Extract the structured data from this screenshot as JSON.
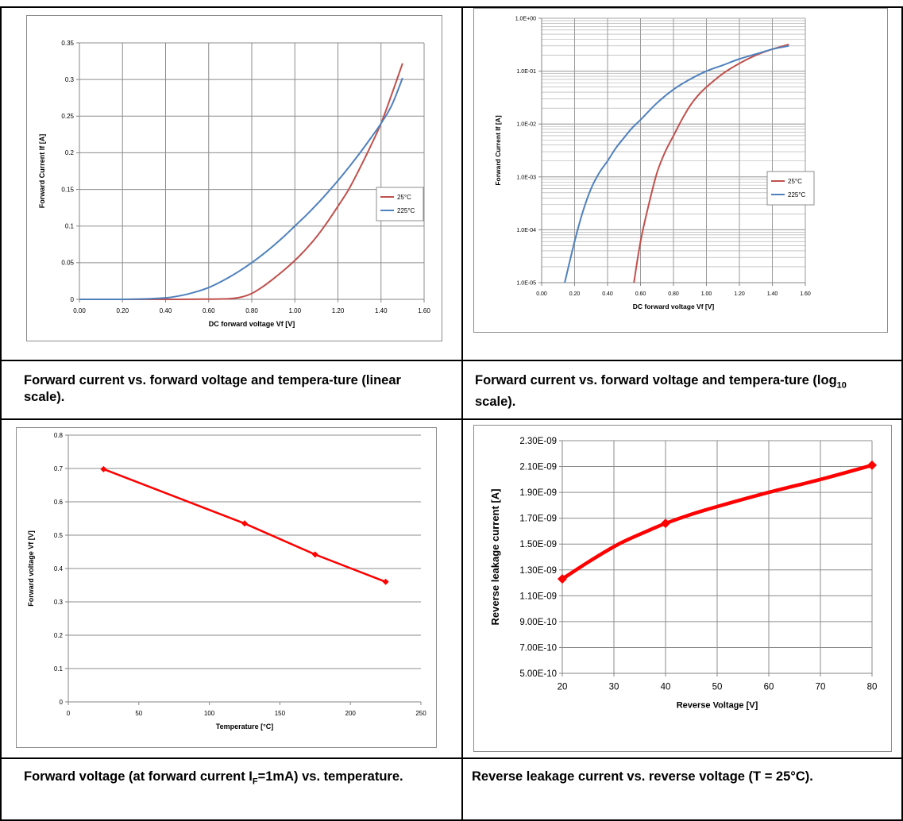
{
  "captions": {
    "c1": "Forward current vs. forward voltage and tempera-ture (linear scale).",
    "c2_a": "Forward current vs. forward voltage and tempera-ture (log",
    "c2_sub": "10",
    "c2_b": " scale).",
    "c3_a": "Forward voltage (at forward current I",
    "c3_sub": "F",
    "c3_b": "=1mA) vs. temperature.",
    "c4": "Reverse leakage current vs. reverse voltage (T = 25°C)."
  },
  "chart_data": [
    {
      "type": "line",
      "title": "",
      "xlabel": "DC forward voltage Vf [V]",
      "ylabel": "Forward Current If [A]",
      "xlim": [
        0,
        1.6
      ],
      "ylim": [
        0,
        0.35
      ],
      "xticks": [
        "0.00",
        "0.20",
        "0.40",
        "0.60",
        "0.80",
        "1.00",
        "1.20",
        "1.40",
        "1.60"
      ],
      "yticks": [
        "0",
        "0.05",
        "0.1",
        "0.15",
        "0.2",
        "0.25",
        "0.3",
        "0.35"
      ],
      "grid": true,
      "legend": "right",
      "series": [
        {
          "name": "25°C",
          "color": "#c0504d",
          "x": [
            0,
            0.2,
            0.4,
            0.6,
            0.7,
            0.75,
            0.8,
            0.85,
            0.9,
            0.95,
            1.0,
            1.05,
            1.1,
            1.15,
            1.2,
            1.25,
            1.3,
            1.35,
            1.4,
            1.45,
            1.5
          ],
          "y": [
            0,
            0,
            0,
            0.0003,
            0.001,
            0.003,
            0.008,
            0.017,
            0.028,
            0.04,
            0.053,
            0.068,
            0.085,
            0.105,
            0.127,
            0.15,
            0.178,
            0.208,
            0.24,
            0.28,
            0.322
          ]
        },
        {
          "name": "225°C",
          "color": "#4f81bd",
          "x": [
            0,
            0.2,
            0.3,
            0.4,
            0.45,
            0.5,
            0.55,
            0.6,
            0.65,
            0.7,
            0.75,
            0.8,
            0.85,
            0.9,
            0.95,
            1.0,
            1.05,
            1.1,
            1.15,
            1.2,
            1.25,
            1.3,
            1.35,
            1.4,
            1.45,
            1.5
          ],
          "y": [
            0,
            0,
            0.0005,
            0.002,
            0.004,
            0.007,
            0.011,
            0.016,
            0.023,
            0.031,
            0.04,
            0.05,
            0.061,
            0.073,
            0.086,
            0.1,
            0.114,
            0.129,
            0.145,
            0.162,
            0.18,
            0.199,
            0.219,
            0.24,
            0.265,
            0.302
          ]
        }
      ]
    },
    {
      "type": "line",
      "title": "",
      "xlabel": "DC forward voltage Vf [V]",
      "ylabel": "Forward Current If [A]",
      "yscale": "log",
      "xlim": [
        0,
        1.6
      ],
      "ylim": [
        1e-05,
        1
      ],
      "xticks": [
        "0.00",
        "0.20",
        "0.40",
        "0.60",
        "0.80",
        "1.00",
        "1.20",
        "1.40",
        "1.60"
      ],
      "yticks": [
        "1.0E-05",
        "1.0E-04",
        "1.0E-03",
        "1.0E-02",
        "1.0E-01",
        "1.0E+00"
      ],
      "grid": true,
      "legend": "right",
      "series": [
        {
          "name": "25°C",
          "color": "#c0504d",
          "x": [
            0.56,
            0.6,
            0.65,
            0.7,
            0.75,
            0.8,
            0.85,
            0.9,
            0.95,
            1.0,
            1.1,
            1.2,
            1.3,
            1.4,
            1.5
          ],
          "y": [
            1e-05,
            6e-05,
            0.0003,
            0.0012,
            0.003,
            0.006,
            0.012,
            0.022,
            0.035,
            0.05,
            0.09,
            0.14,
            0.2,
            0.26,
            0.32
          ]
        },
        {
          "name": "225°C",
          "color": "#4f81bd",
          "x": [
            0.14,
            0.2,
            0.25,
            0.3,
            0.35,
            0.4,
            0.45,
            0.5,
            0.55,
            0.6,
            0.7,
            0.8,
            0.9,
            1.0,
            1.1,
            1.2,
            1.3,
            1.4,
            1.5
          ],
          "y": [
            1e-05,
            6e-05,
            0.00022,
            0.0006,
            0.0012,
            0.002,
            0.0035,
            0.0055,
            0.0085,
            0.012,
            0.025,
            0.045,
            0.07,
            0.1,
            0.13,
            0.17,
            0.21,
            0.26,
            0.3
          ]
        }
      ]
    },
    {
      "type": "line",
      "title": "",
      "xlabel": "Temperature [°C]",
      "ylabel": "Forward voltage Vf [V]",
      "xlim": [
        0,
        250
      ],
      "ylim": [
        0,
        0.8
      ],
      "xticks": [
        "0",
        "50",
        "100",
        "150",
        "200",
        "250"
      ],
      "yticks": [
        "0",
        "0.1",
        "0.2",
        "0.3",
        "0.4",
        "0.5",
        "0.6",
        "0.7",
        "0.8"
      ],
      "grid": "horizontal",
      "series": [
        {
          "name": "",
          "color": "#ff0000",
          "x": [
            25,
            125,
            175,
            225
          ],
          "y": [
            0.698,
            0.535,
            0.442,
            0.36
          ]
        }
      ]
    },
    {
      "type": "line",
      "title": "",
      "xlabel": "Reverse Voltage [V]",
      "ylabel": "Reverse leakage  current [A]",
      "xlim": [
        20,
        80
      ],
      "ylim": [
        5e-10,
        2.3e-09
      ],
      "xticks": [
        "20",
        "30",
        "40",
        "50",
        "60",
        "70",
        "80"
      ],
      "yticks": [
        "5.00E-10",
        "7.00E-10",
        "9.00E-10",
        "1.10E-09",
        "1.30E-09",
        "1.50E-09",
        "1.70E-09",
        "1.90E-09",
        "2.10E-09",
        "2.30E-09"
      ],
      "grid": true,
      "series": [
        {
          "name": "",
          "color": "#ff0000",
          "x": [
            20,
            25,
            30,
            33,
            37,
            40,
            45,
            50,
            60,
            70,
            80
          ],
          "y": [
            1.23e-09,
            1.36e-09,
            1.48e-09,
            1.54e-09,
            1.61e-09,
            1.66e-09,
            1.73e-09,
            1.79e-09,
            1.9e-09,
            2e-09,
            2.11e-09
          ],
          "markers": [
            0,
            5,
            10
          ]
        }
      ]
    }
  ]
}
